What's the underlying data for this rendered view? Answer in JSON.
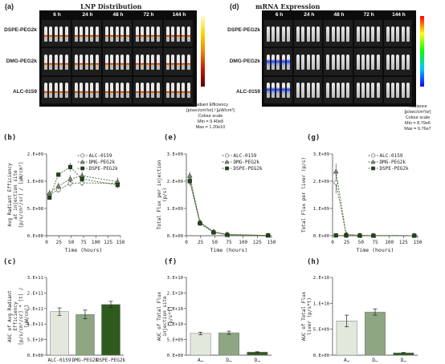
{
  "panel_a": {
    "letter": "(a)",
    "title": "LNP Distribution",
    "times": [
      "6 h",
      "24 h",
      "48 h",
      "72 h",
      "144 h"
    ],
    "rows": [
      "DSPE-PEG2k",
      "DMG-PEG2k",
      "ALC-0159"
    ],
    "units": "Radiant Efficiency\n[p/sec/cm²/sr] / [µW/cm²]",
    "scale": "Colour scale",
    "min": "Min = 9.40e8",
    "max": "Max = 1.20e10",
    "colorbar_colors": [
      "#fffbd0",
      "#f7d700",
      "#e88a00",
      "#c21b00",
      "#5a0000"
    ]
  },
  "panel_d": {
    "letter": "(d)",
    "title": "mRNA Expression",
    "times": [
      "6 h",
      "24 h",
      "48 h",
      "72 h",
      "144 h"
    ],
    "rows": [
      "DSPE-PEG2k",
      "DMG-PEG2k",
      "ALC-0159"
    ],
    "units": "Radiance\n[p/sec/cm²/sr]",
    "scale": "Colour scale",
    "min": "Min = 8.79e6",
    "max": "Max = 9.76e7",
    "colorbar_colors": [
      "#ff0000",
      "#ffff00",
      "#00ff00",
      "#00c8ff",
      "#1a00ff"
    ]
  },
  "chart_data": [
    {
      "id": "b",
      "letter": "(b)",
      "type": "line",
      "ylabel": "Avg Radiant Efficiency\nat injection site\n[p/s/cm²/sr] / [µW/cm²]",
      "xlabel": "Time (hours)",
      "xlim": [
        0,
        150
      ],
      "ylim": [
        0,
        1500000000
      ],
      "yticks": [
        "0.E+00",
        "5.E+08",
        "1.E+09",
        "2.E+09"
      ],
      "xticks": [
        "0",
        "25",
        "50",
        "75",
        "100",
        "125",
        "150"
      ],
      "legend": "top-right",
      "x": [
        6,
        24,
        48,
        72,
        144
      ],
      "series": [
        {
          "name": "ALC-0159",
          "values": [
            760000000,
            840000000,
            960000000,
            970000000,
            960000000
          ],
          "err": [
            50000000,
            50000000,
            60000000,
            60000000,
            70000000
          ],
          "color": "#ffffff",
          "marker": "circle"
        },
        {
          "name": "DMG-PEG2k",
          "values": [
            780000000,
            910000000,
            1040000000,
            1100000000,
            990000000
          ],
          "err": [
            60000000,
            60000000,
            70000000,
            80000000,
            80000000
          ],
          "color": "#7a9a6a",
          "marker": "triangle"
        },
        {
          "name": "DSPE-PEG2k",
          "values": [
            700000000,
            1120000000,
            1260000000,
            1040000000,
            930000000
          ],
          "err": [
            40000000,
            40000000,
            80000000,
            70000000,
            60000000
          ],
          "color": "#1f4a12",
          "marker": "square"
        }
      ]
    },
    {
      "id": "c",
      "letter": "(c)",
      "type": "bar",
      "ylabel": "AUC of Avg Radiant\nEfficiency\n[p/s/cm²/sr] * [t] /\n[µW/cm²]",
      "ylim": [
        0,
        250000000000
      ],
      "yticks": [
        "0.E+00",
        "5.E+10",
        "1.E+11",
        "2.E+11",
        "2.E+11",
        "3.E+11"
      ],
      "categories": [
        "ALC-0159",
        "DMG-PEG2k",
        "DSPE-PEG2k"
      ],
      "values": [
        140000000000,
        131000000000,
        163000000000
      ],
      "err": [
        12000000000,
        14000000000,
        10000000000
      ],
      "colors": [
        "#e2e8dc",
        "#8fa683",
        "#2f5a1e"
      ]
    },
    {
      "id": "e",
      "letter": "(e)",
      "type": "line",
      "ylabel": "Total Flux per injection\n(p/s)",
      "xlabel": "Time (hours)",
      "xlim": [
        0,
        150
      ],
      "ylim": [
        0,
        3000000000
      ],
      "yticks": [
        "0.E+00",
        "1.E+09",
        "2.E+09",
        "3.E+09"
      ],
      "xticks": [
        "0",
        "25",
        "50",
        "75",
        "100",
        "125",
        "150"
      ],
      "legend": "top-right",
      "x": [
        6,
        24,
        48,
        72,
        144
      ],
      "series": [
        {
          "name": "ALC-0159",
          "values": [
            2050000000,
            480000000,
            130000000,
            40000000,
            10000000
          ],
          "err": [
            150000000,
            50000000,
            20000000,
            10000000,
            5000000
          ],
          "color": "#ffffff",
          "marker": "circle"
        },
        {
          "name": "DMG-PEG2k",
          "values": [
            2200000000,
            500000000,
            150000000,
            50000000,
            10000000
          ],
          "err": [
            150000000,
            50000000,
            20000000,
            10000000,
            5000000
          ],
          "color": "#7a9a6a",
          "marker": "triangle"
        },
        {
          "name": "DSPE-PEG2k",
          "values": [
            2000000000,
            450000000,
            120000000,
            30000000,
            10000000
          ],
          "err": [
            150000000,
            50000000,
            20000000,
            10000000,
            5000000
          ],
          "color": "#1f4a12",
          "marker": "square"
        }
      ]
    },
    {
      "id": "f",
      "letter": "(f)",
      "type": "bar",
      "ylabel": "AUC of Total Flux\ninjection site\n[p/s*t]",
      "ylim": [
        0,
        25000000000
      ],
      "yticks": [
        "0.E+00",
        "5.E+09",
        "1.E+10",
        "2.E+10",
        "2.E+10",
        "3.E+10"
      ],
      "categories": [
        "A…",
        "D…",
        "D…"
      ],
      "values": [
        7000000000,
        7200000000,
        1000000000
      ],
      "err": [
        400000000,
        500000000,
        100000000
      ],
      "colors": [
        "#e2e8dc",
        "#8fa683",
        "#2f5a1e"
      ]
    },
    {
      "id": "g",
      "letter": "(g)",
      "type": "line",
      "ylabel": "Total Flux per liver (p/s)",
      "xlabel": "Time (hours)",
      "xlim": [
        0,
        150
      ],
      "ylim": [
        0,
        3000000000
      ],
      "yticks": [
        "0.E+00",
        "1.E+09",
        "2.E+09",
        "3.E+09"
      ],
      "xticks": [
        "0",
        "25",
        "50",
        "75",
        "100",
        "125",
        "150"
      ],
      "legend": "top-right",
      "x": [
        6,
        24,
        48,
        72,
        144
      ],
      "series": [
        {
          "name": "ALC-0159",
          "values": [
            1950000000,
            40000000,
            10000000,
            5000000,
            3000000
          ],
          "err": [
            400000000,
            10000000,
            5000000,
            3000000,
            2000000
          ],
          "color": "#ffffff",
          "marker": "circle"
        },
        {
          "name": "DMG-PEG2k",
          "values": [
            2350000000,
            50000000,
            10000000,
            5000000,
            3000000
          ],
          "err": [
            300000000,
            10000000,
            5000000,
            3000000,
            2000000
          ],
          "color": "#7a9a6a",
          "marker": "triangle"
        },
        {
          "name": "DSPE-PEG2k",
          "values": [
            10000000,
            8000000,
            5000000,
            4000000,
            3000000
          ],
          "err": [
            5000000,
            4000000,
            3000000,
            2000000,
            2000000
          ],
          "color": "#1f4a12",
          "marker": "square"
        }
      ]
    },
    {
      "id": "h",
      "letter": "(h)",
      "type": "bar",
      "ylabel": "AUC of Total Flux\nliver (p/s*t)",
      "ylim": [
        0,
        20000000000
      ],
      "yticks": [
        "0.E+00",
        "5.E+09",
        "1.E+10",
        "2.E+10"
      ],
      "categories": [
        "A…",
        "D…",
        "D…"
      ],
      "values": [
        8800000000,
        11100000000,
        600000000
      ],
      "err": [
        1500000000,
        800000000,
        100000000
      ],
      "colors": [
        "#e2e8dc",
        "#8fa683",
        "#2f5a1e"
      ]
    }
  ]
}
